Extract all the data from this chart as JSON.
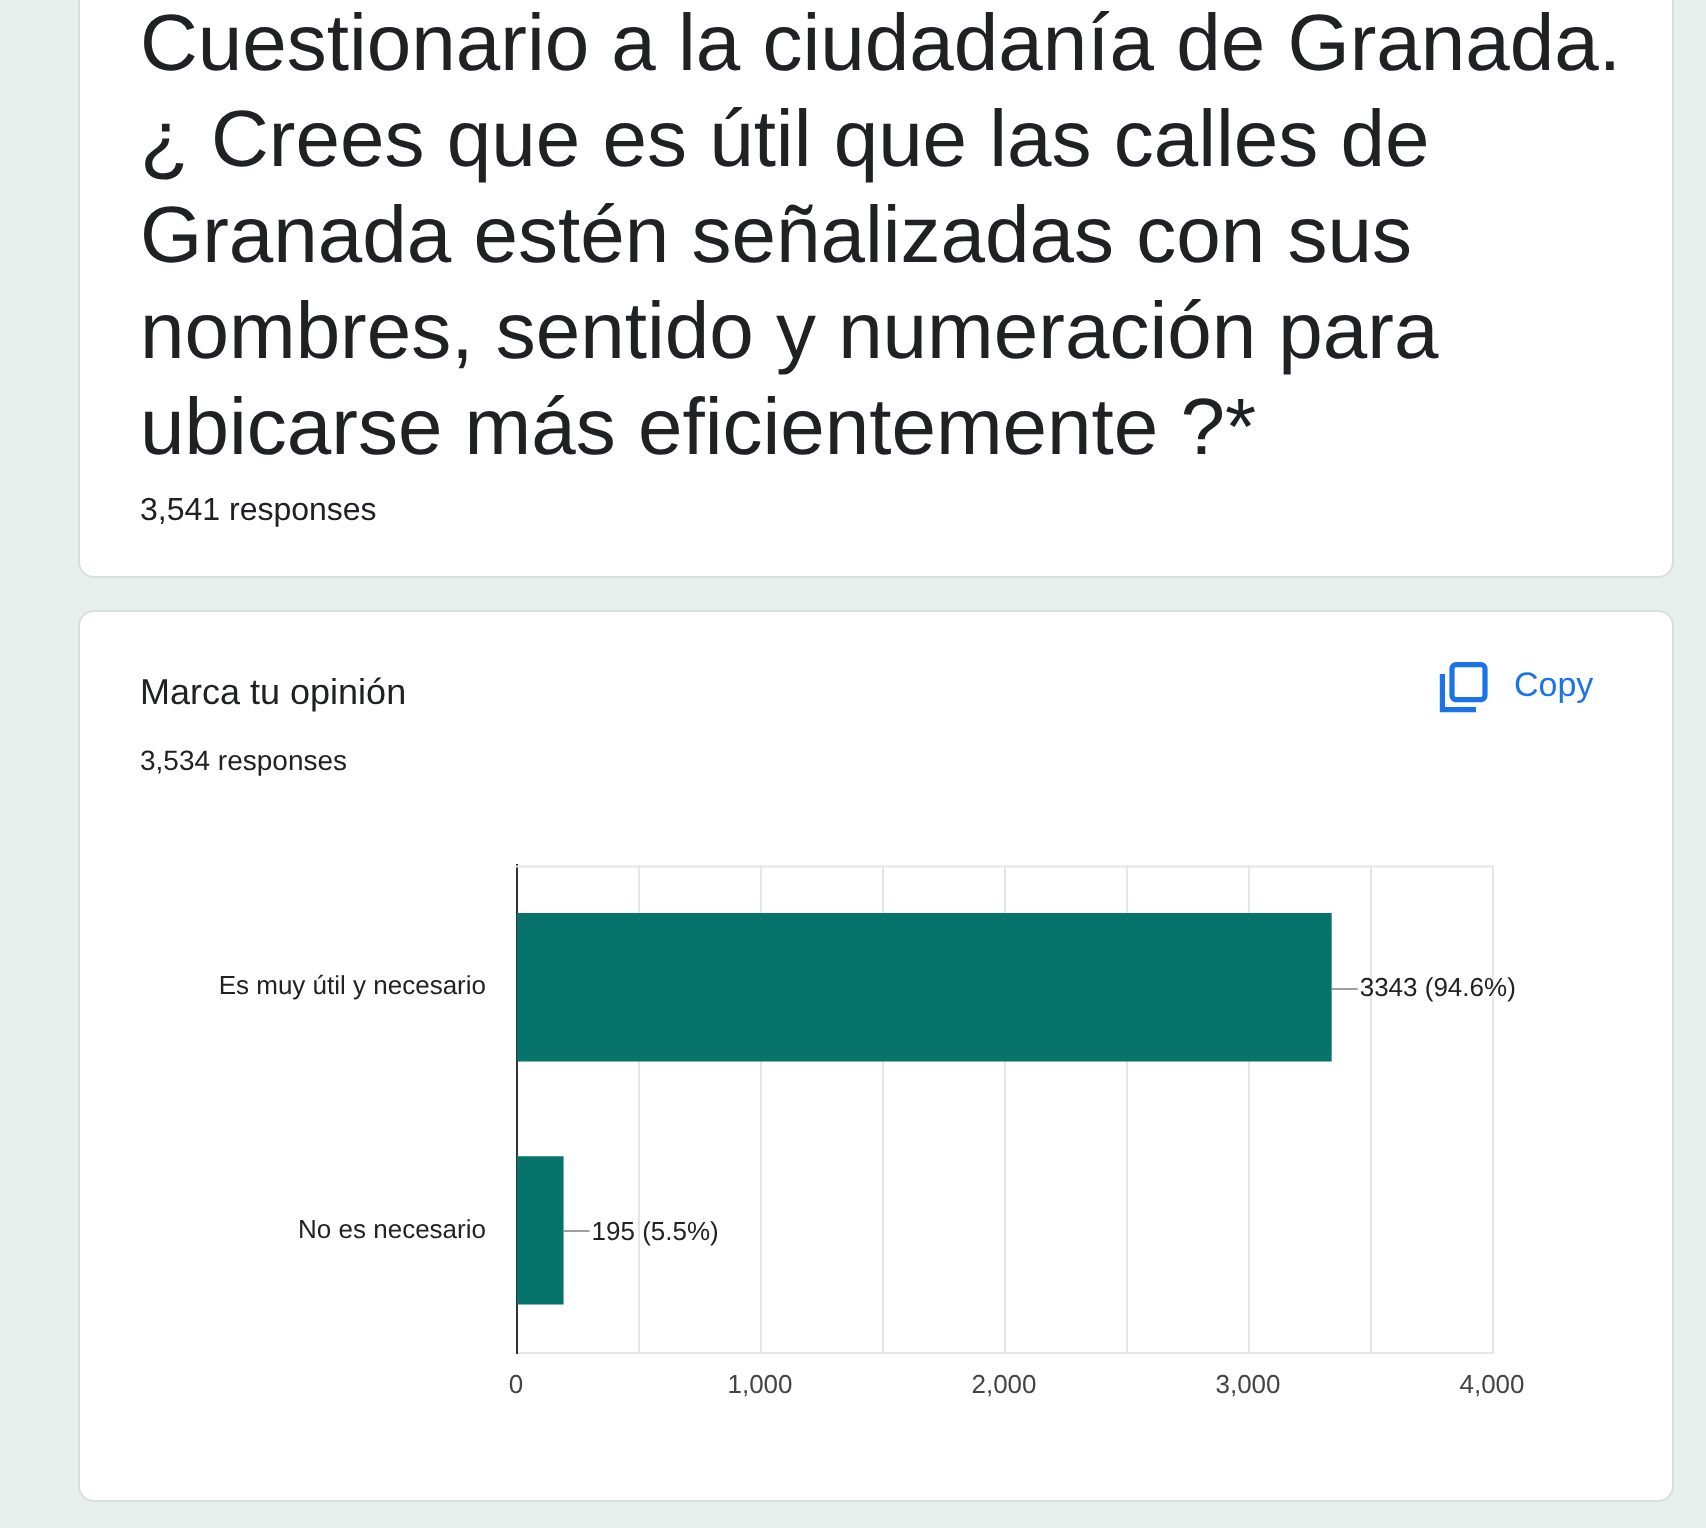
{
  "chart_data": {
    "type": "bar",
    "orientation": "horizontal",
    "title": "Marca tu opinión",
    "subtitle": "3,534 responses",
    "annotations": [
      "Cuestionario a la ciudadanía de Granada. ¿ Crees que es útil que las calles de Granada estén señalizadas con sus nombres, sentido y numeración para ubicarse más eficientemente ?*",
      "3,541 responses",
      "Copy"
    ],
    "categories": [
      "Es muy útil y necesario",
      "No es necesario"
    ],
    "values": [
      3343,
      195
    ],
    "value_labels": [
      "3343 (94.6%)",
      "195 (5.5%)"
    ],
    "color": "#07736a",
    "xlim": [
      0,
      4000
    ],
    "xticks": [
      0,
      {
        "value": 500,
        "label": null
      },
      {
        "value": 1000,
        "label": "1,000"
      },
      {
        "value": 1500,
        "label": null
      },
      {
        "value": 2000,
        "label": "2,000"
      },
      {
        "value": 2500,
        "label": null
      },
      {
        "value": 3000,
        "label": "3,000"
      },
      {
        "value": 3500,
        "label": null
      },
      {
        "value": 4000,
        "label": "4,000"
      }
    ],
    "grid": "x"
  }
}
